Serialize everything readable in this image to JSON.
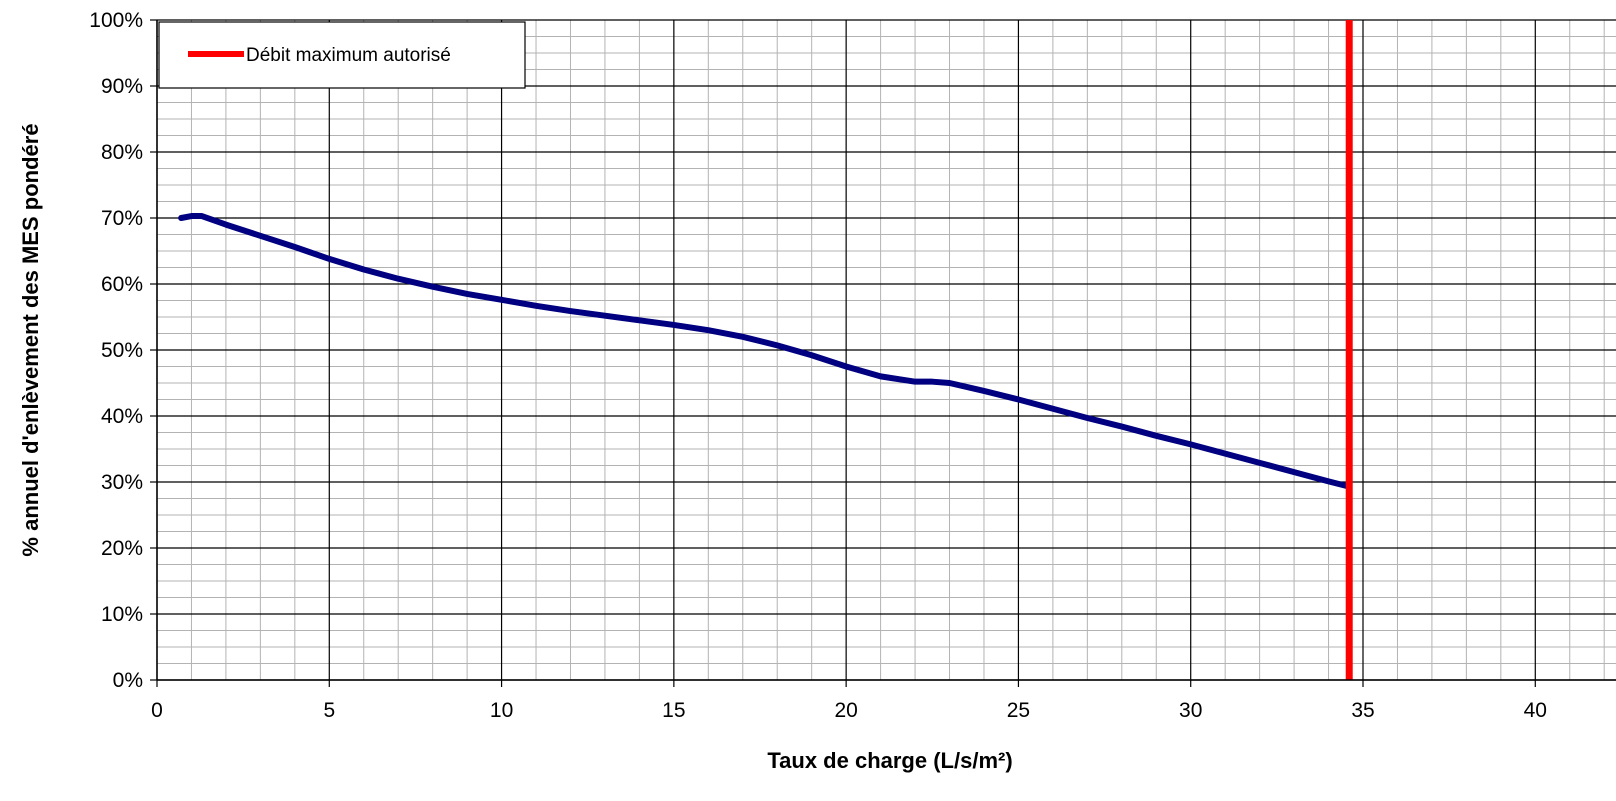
{
  "chart_data": {
    "type": "line",
    "title": "",
    "xlabel": "Taux de charge (L/s/m²)",
    "ylabel": "% annuel d'enlèvement des MES pondéré",
    "xlim": [
      0,
      40
    ],
    "ylim": [
      0,
      100
    ],
    "x_ticks": [
      0,
      5,
      10,
      15,
      20,
      25,
      30,
      35,
      40
    ],
    "x_tick_labels": [
      "0",
      "5",
      "10",
      "15",
      "20",
      "25",
      "30",
      "35",
      "40"
    ],
    "y_ticks": [
      0,
      10,
      20,
      30,
      40,
      50,
      60,
      70,
      80,
      90,
      100
    ],
    "y_tick_labels": [
      "0%",
      "10%",
      "20%",
      "30%",
      "40%",
      "50%",
      "60%",
      "70%",
      "80%",
      "90%",
      "100%"
    ],
    "grid": {
      "major": true,
      "minor": true,
      "x_minor_step": 1,
      "y_minor_step": 2.5
    },
    "legend": {
      "position": "top-left",
      "entries": [
        {
          "name": "Débit maximum autorisé",
          "color": "#ff0000"
        }
      ]
    },
    "series": [
      {
        "color": "#000080",
        "x": [
          0.7,
          1.0,
          1.3,
          2.0,
          3.0,
          4.0,
          5.0,
          6.0,
          7.0,
          8.0,
          9.0,
          10.0,
          11.0,
          12.0,
          13.0,
          14.0,
          15.0,
          16.0,
          17.0,
          18.0,
          19.0,
          20.0,
          21.0,
          22.0,
          22.5,
          23.0,
          24.0,
          25.0,
          26.0,
          27.0,
          28.0,
          29.0,
          30.0,
          31.0,
          32.0,
          33.0,
          34.0,
          34.6
        ],
        "y": [
          70.0,
          70.3,
          70.3,
          69.0,
          67.3,
          65.6,
          63.8,
          62.2,
          60.8,
          59.6,
          58.5,
          57.6,
          56.7,
          55.9,
          55.2,
          54.5,
          53.8,
          53.0,
          52.0,
          50.7,
          49.2,
          47.5,
          46.0,
          45.2,
          45.2,
          45.0,
          43.8,
          42.5,
          41.1,
          39.7,
          38.4,
          37.0,
          35.7,
          34.3,
          32.9,
          31.5,
          30.1,
          29.3
        ]
      },
      {
        "name": "Débit maximum autorisé",
        "color": "#ff0000",
        "x": [
          34.6,
          34.6
        ],
        "y": [
          0,
          100
        ]
      }
    ]
  }
}
